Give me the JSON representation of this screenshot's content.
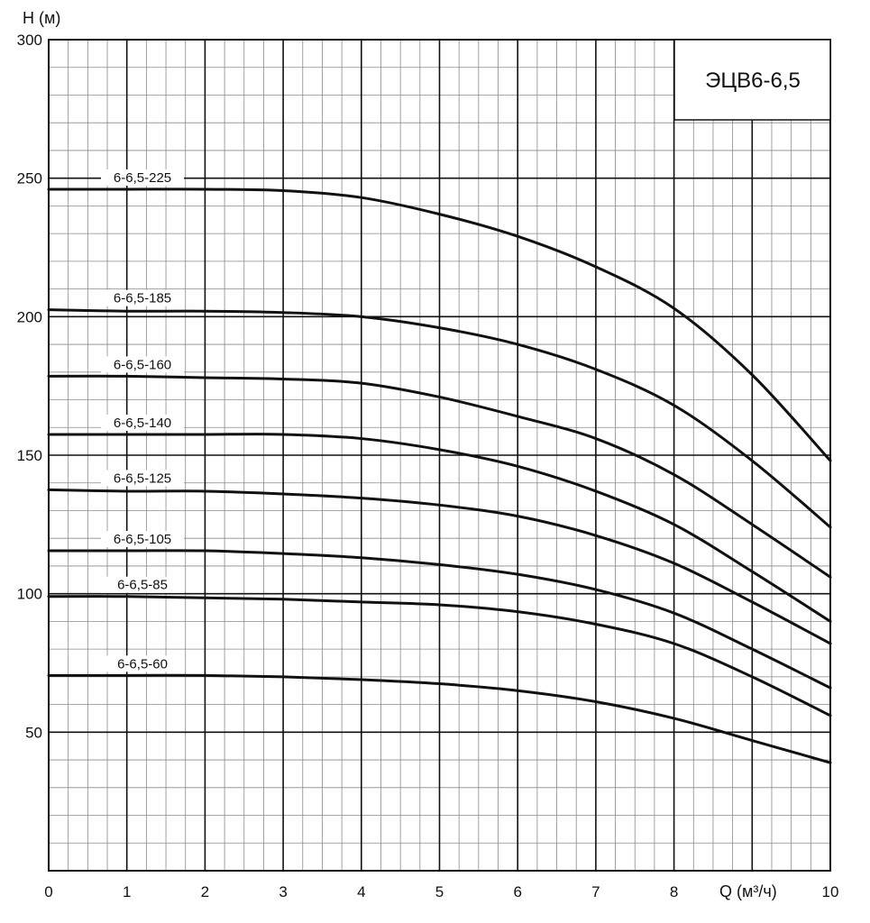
{
  "chart_data": {
    "type": "line",
    "title": "ЭЦВ6-6,5",
    "xlabel": "Q (м³/ч)",
    "ylabel": "H (м)",
    "xlim": [
      0,
      10
    ],
    "ylim": [
      0,
      300
    ],
    "x_ticks": [
      "0",
      "1",
      "2",
      "3",
      "4",
      "5",
      "6",
      "7",
      "8",
      "10"
    ],
    "y_ticks": [
      "50",
      "100",
      "150",
      "200",
      "250",
      "300"
    ],
    "grid": true,
    "series": [
      {
        "name": "6-6,5-225",
        "x": [
          0,
          1,
          2,
          3,
          4,
          5,
          6,
          7,
          8,
          9,
          10
        ],
        "y": [
          246,
          246,
          246,
          245.5,
          243,
          237,
          229,
          218,
          203,
          179,
          148
        ]
      },
      {
        "name": "6-6,5-185",
        "x": [
          0,
          1,
          2,
          3,
          4,
          5,
          6,
          7,
          8,
          9,
          10
        ],
        "y": [
          202.5,
          202,
          202,
          201.5,
          200,
          196,
          190,
          181,
          168,
          148,
          124
        ]
      },
      {
        "name": "6-6,5-160",
        "x": [
          0,
          1,
          2,
          3,
          4,
          5,
          6,
          7,
          8,
          9,
          10
        ],
        "y": [
          178.5,
          178.5,
          178,
          177.5,
          176,
          171,
          164,
          156,
          143,
          125,
          106
        ]
      },
      {
        "name": "6-6,5-140",
        "x": [
          0,
          1,
          2,
          3,
          4,
          5,
          6,
          7,
          8,
          9,
          10
        ],
        "y": [
          157.5,
          157.5,
          157.5,
          157.5,
          156,
          152,
          146,
          137,
          125,
          108,
          90
        ]
      },
      {
        "name": "6-6,5-125",
        "x": [
          0,
          1,
          2,
          3,
          4,
          5,
          6,
          7,
          8,
          9,
          10
        ],
        "y": [
          137.5,
          137,
          137,
          136,
          134.5,
          132,
          128,
          121,
          111,
          97,
          82
        ]
      },
      {
        "name": "6-6,5-105",
        "x": [
          0,
          1,
          2,
          3,
          4,
          5,
          6,
          7,
          8,
          9,
          10
        ],
        "y": [
          115.5,
          115.5,
          115.5,
          114.5,
          113,
          110.5,
          107,
          101.5,
          93,
          80,
          66
        ]
      },
      {
        "name": "6-6,5-85",
        "x": [
          0,
          1,
          2,
          3,
          4,
          5,
          6,
          7,
          8,
          9,
          10
        ],
        "y": [
          99,
          99,
          98.5,
          98,
          97,
          96,
          93.5,
          89,
          82,
          70,
          56
        ]
      },
      {
        "name": "6-6,5-60",
        "x": [
          0,
          1,
          2,
          3,
          4,
          5,
          6,
          7,
          8,
          9,
          10
        ],
        "y": [
          70.5,
          70.5,
          70.5,
          70,
          69,
          67.5,
          65,
          61,
          55,
          47,
          39
        ]
      }
    ]
  },
  "colors": {
    "curve": "#111111",
    "major_grid": "#111111",
    "minor_grid": "#8a8a8a",
    "background": "#ffffff"
  }
}
